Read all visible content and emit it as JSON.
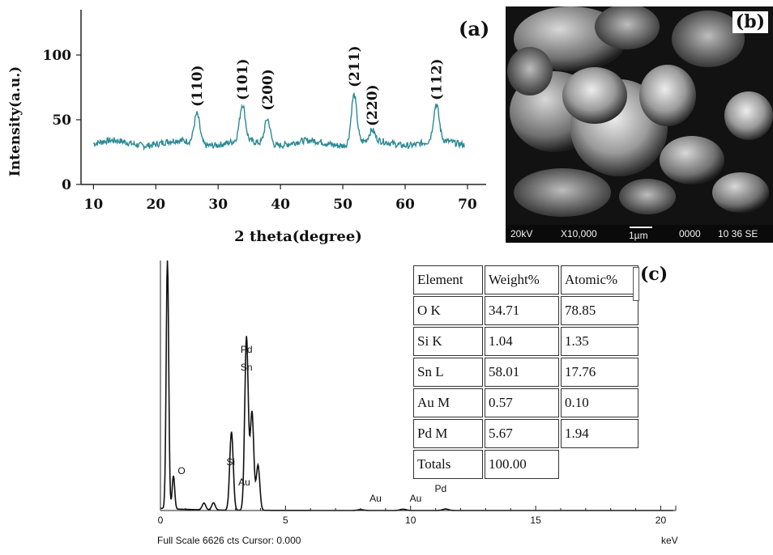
{
  "panel_a": {
    "label": "(a)",
    "xlabel": "2 theta(degree)",
    "ylabel": "Intensity(a.u.)",
    "color": "#2a8a95"
  },
  "panel_b": {
    "label": "(b)",
    "sem_info": {
      "voltage": "20kV",
      "magnification": "X10,000",
      "scale": "1µm",
      "code": "0000",
      "id": "10 36 SE"
    }
  },
  "panel_c": {
    "label": "(c)",
    "footer_left": "Full Scale 6626 cts Cursor: 0.000",
    "footer_right": "keV",
    "table": {
      "headers": [
        "Element",
        "Weight%",
        "Atomic%"
      ],
      "rows": [
        {
          "element": "O K",
          "weight": "34.71",
          "atomic": "78.85"
        },
        {
          "element": "Si K",
          "weight": "1.04",
          "atomic": "1.35"
        },
        {
          "element": "Sn L",
          "weight": "58.01",
          "atomic": "17.76"
        },
        {
          "element": "Au M",
          "weight": "0.57",
          "atomic": "0.10"
        },
        {
          "element": "Pd M",
          "weight": "5.67",
          "atomic": "1.94"
        }
      ],
      "totals_label": "Totals",
      "totals_value": "100.00"
    }
  },
  "chart_data": [
    {
      "type": "line",
      "title": "",
      "xlabel": "2 theta(degree)",
      "ylabel": "Intensity(a.u.)",
      "xlim": [
        8,
        73
      ],
      "ylim": [
        0,
        135
      ],
      "x_ticks": [
        10,
        20,
        30,
        40,
        50,
        60,
        70
      ],
      "y_ticks": [
        0,
        50,
        100
      ],
      "grid": false,
      "baseline": 32,
      "series": [
        {
          "peaks": [
            {
              "x": 26.6,
              "y": 55,
              "label": "(110)"
            },
            {
              "x": 33.9,
              "y": 60,
              "label": "(101)"
            },
            {
              "x": 37.9,
              "y": 52,
              "label": "(200)"
            },
            {
              "x": 51.8,
              "y": 70,
              "label": "(211)"
            },
            {
              "x": 54.7,
              "y": 40,
              "label": "(220)"
            },
            {
              "x": 65.0,
              "y": 60,
              "label": "(112)"
            }
          ]
        }
      ]
    },
    {
      "type": "line",
      "title": "",
      "xlabel": "keV",
      "ylabel": "",
      "xlim": [
        0,
        20.6
      ],
      "x_ticks": [
        0,
        5,
        10,
        15,
        20
      ],
      "y_full_scale": 6626,
      "grid": false,
      "series": [
        {
          "peaks": [
            {
              "x": 0.28,
              "y": 6626
            },
            {
              "x": 0.52,
              "y": 880
            },
            {
              "x": 1.74,
              "y": 180
            },
            {
              "x": 2.12,
              "y": 190
            },
            {
              "x": 2.84,
              "y": 2080
            },
            {
              "x": 3.44,
              "y": 4600
            },
            {
              "x": 3.66,
              "y": 2600
            },
            {
              "x": 3.9,
              "y": 1200
            },
            {
              "x": 8.0,
              "y": 25
            },
            {
              "x": 9.7,
              "y": 35
            },
            {
              "x": 11.4,
              "y": 40
            }
          ]
        }
      ],
      "annotations": [
        {
          "x": 0.52,
          "text": "O"
        },
        {
          "x": 1.74,
          "text": "Si"
        },
        {
          "x": 2.12,
          "text": "Au"
        },
        {
          "x": 3.44,
          "text": "Pd"
        },
        {
          "x": 3.44,
          "text": "Sn"
        },
        {
          "x": 8.6,
          "text": "Au"
        },
        {
          "x": 10.2,
          "text": "Au"
        },
        {
          "x": 11.2,
          "text": "Pd"
        },
        {
          "x": 11.4,
          "text": "Au"
        }
      ]
    }
  ]
}
